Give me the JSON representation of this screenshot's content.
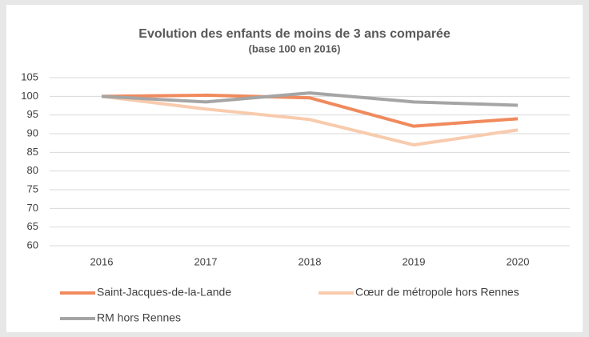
{
  "chart_data": {
    "type": "line",
    "title": "Evolution des enfants de moins de 3 ans comparée",
    "subtitle": "(base 100 en 2016)",
    "categories": [
      "2016",
      "2017",
      "2018",
      "2019",
      "2020"
    ],
    "series": [
      {
        "name": "Saint-Jacques-de-la-Lande",
        "color": "#f08a5d",
        "values": [
          100,
          100.3,
          99.6,
          92.0,
          94.0
        ]
      },
      {
        "name": "Cœur de métropole hors Rennes",
        "color": "#f8cbad",
        "values": [
          100,
          96.6,
          93.8,
          87.0,
          91.0
        ]
      },
      {
        "name": "RM hors Rennes",
        "color": "#a5a5a5",
        "values": [
          100,
          98.5,
          100.9,
          98.5,
          97.6
        ]
      }
    ],
    "ylim": [
      60,
      105
    ],
    "yticks": [
      60,
      65,
      70,
      75,
      80,
      85,
      90,
      95,
      100,
      105
    ],
    "grid": true
  }
}
